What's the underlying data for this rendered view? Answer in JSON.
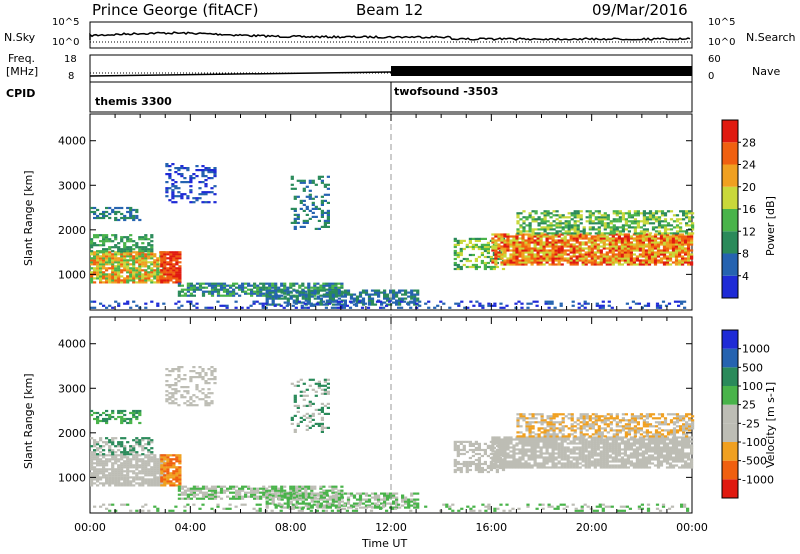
{
  "header": {
    "station": "Prince George (fitACF)",
    "beam": "Beam 12",
    "date": "09/Mar/2016"
  },
  "strips": {
    "nsky_label": "N.Sky",
    "nsky_ticks": [
      "10^5",
      "10^0"
    ],
    "nsearch_label": "N.Search",
    "nsearch_ticks": [
      "10^5",
      "10^0"
    ],
    "freq_label_1": "Freq.",
    "freq_label_2": "[MHz]",
    "freq_ticks": [
      "18",
      "8"
    ],
    "nave_label": "Nave",
    "nave_ticks": [
      "60",
      "0"
    ],
    "cpid_label": "CPID",
    "cpid_modes": [
      {
        "name": "themis 3300",
        "start_hour": 0
      },
      {
        "name": "twofsound -3503",
        "start_hour": 12
      }
    ]
  },
  "chart_data": [
    {
      "type": "heatmap",
      "name": "power-panel",
      "ylabel": "Slant Range [km]",
      "xlabel": "",
      "yticks": [
        1000,
        2000,
        3000,
        4000
      ],
      "ylim": [
        200,
        4600
      ],
      "xlim": [
        0,
        24
      ],
      "colorbar": {
        "label": "Power [dB]",
        "ticks": [
          4,
          8,
          12,
          16,
          20,
          24,
          28
        ],
        "range": [
          0,
          32
        ],
        "colors": [
          "#1f2bd6",
          "#2563b0",
          "#2a8a5a",
          "#49b34a",
          "#c9d83a",
          "#f0a020",
          "#f06010",
          "#e01a10"
        ]
      }
    },
    {
      "type": "heatmap",
      "name": "velocity-panel",
      "ylabel": "Slant Range [km]",
      "xlabel": "Time UT",
      "yticks": [
        1000,
        2000,
        3000,
        4000
      ],
      "ylim": [
        200,
        4600
      ],
      "xlim": [
        0,
        24
      ],
      "xticklabels": [
        "00:00",
        "04:00",
        "08:00",
        "12:00",
        "16:00",
        "20:00",
        "00:00"
      ],
      "xticks": [
        0,
        4,
        8,
        12,
        16,
        20,
        24
      ],
      "colorbar": {
        "label": "Velocity [m s-1]",
        "ticks": [
          "1000",
          "500",
          "100",
          "25",
          "-25",
          "-100",
          "-500",
          "-1000"
        ],
        "colors": [
          "#1f2bd6",
          "#2563b0",
          "#2a8a5a",
          "#49b34a",
          "#bdbdb5",
          "#bdbdb5",
          "#f0a020",
          "#f06010",
          "#e01a10"
        ]
      }
    }
  ]
}
